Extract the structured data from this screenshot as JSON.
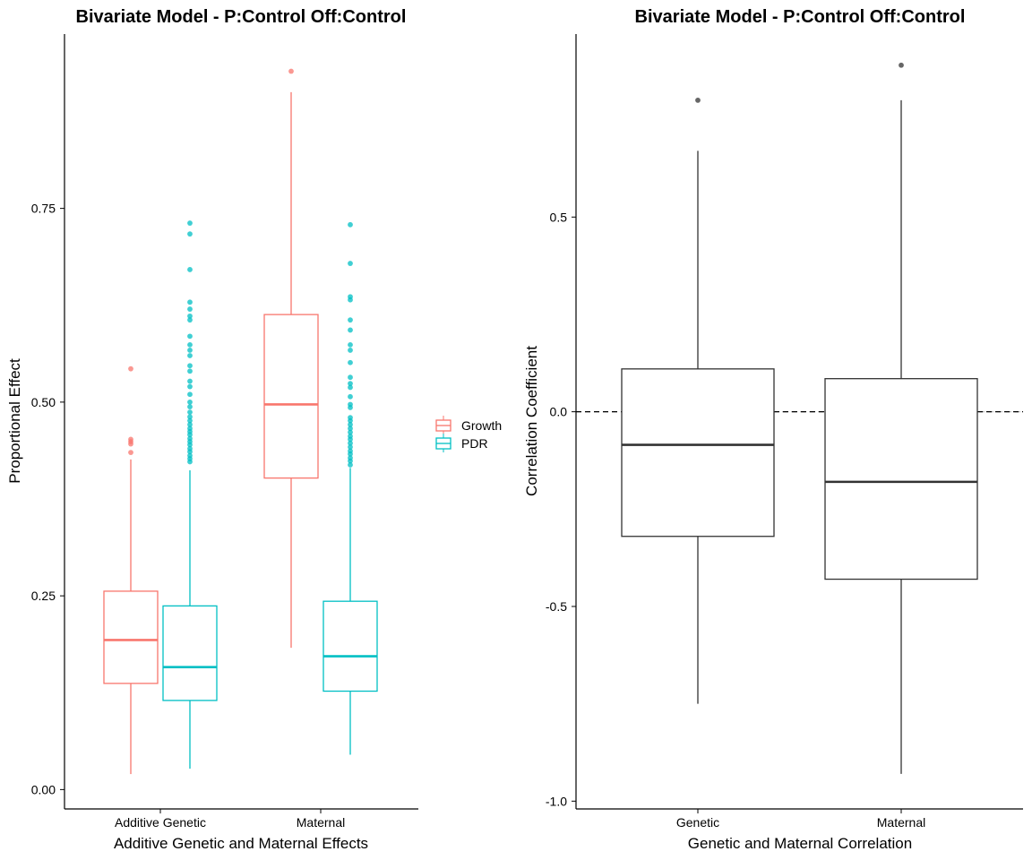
{
  "colors": {
    "growth": "#F8766D",
    "pdr": "#00BFC4",
    "neutral_box": "#333333",
    "outlier_neutral": "#555555",
    "zero_line": "#000000",
    "zero_line_faint": "#bbbbbb"
  },
  "chart_data": [
    {
      "type": "boxplot",
      "title": "Bivariate Model - P:Control Off:Control",
      "xlabel": "Additive Genetic and Maternal Effects",
      "ylabel": "Proportional Effect",
      "categories": [
        "Additive Genetic",
        "Maternal"
      ],
      "ylim": [
        -0.025,
        0.975
      ],
      "yticks": [
        0.0,
        0.25,
        0.5,
        0.75
      ],
      "ytick_labels": [
        "0.00",
        "0.25",
        "0.50",
        "0.75"
      ],
      "grid": false,
      "legend": {
        "position": "right",
        "entries": [
          "Growth",
          "PDR"
        ]
      },
      "series": [
        {
          "name": "Growth",
          "color_key": "growth",
          "boxes": [
            {
              "category": "Additive Genetic",
              "min": 0.02,
              "q1": 0.137,
              "median": 0.193,
              "q3": 0.256,
              "max": 0.426,
              "outliers": [
                0.435,
                0.446,
                0.449,
                0.452,
                0.543
              ]
            },
            {
              "category": "Maternal",
              "min": 0.183,
              "q1": 0.402,
              "median": 0.497,
              "q3": 0.613,
              "max": 0.9,
              "outliers": [
                0.927
              ]
            }
          ]
        },
        {
          "name": "PDR",
          "color_key": "pdr",
          "boxes": [
            {
              "category": "Additive Genetic",
              "min": 0.027,
              "q1": 0.115,
              "median": 0.158,
              "q3": 0.237,
              "max": 0.412,
              "outliers": [
                0.423,
                0.427,
                0.431,
                0.436,
                0.44,
                0.445,
                0.449,
                0.453,
                0.458,
                0.462,
                0.466,
                0.471,
                0.476,
                0.481,
                0.487,
                0.494,
                0.5,
                0.51,
                0.52,
                0.527,
                0.54,
                0.547,
                0.56,
                0.567,
                0.574,
                0.585,
                0.606,
                0.611,
                0.62,
                0.629,
                0.671,
                0.717,
                0.731
              ]
            },
            {
              "category": "Maternal",
              "min": 0.045,
              "q1": 0.127,
              "median": 0.172,
              "q3": 0.243,
              "max": 0.415,
              "outliers": [
                0.419,
                0.424,
                0.428,
                0.433,
                0.437,
                0.442,
                0.447,
                0.452,
                0.456,
                0.461,
                0.466,
                0.471,
                0.476,
                0.48,
                0.493,
                0.497,
                0.507,
                0.519,
                0.524,
                0.532,
                0.551,
                0.567,
                0.574,
                0.593,
                0.606,
                0.632,
                0.636,
                0.679,
                0.729
              ]
            }
          ]
        }
      ]
    },
    {
      "type": "boxplot",
      "title": "Bivariate Model - P:Control Off:Control",
      "xlabel": "Genetic and Maternal Correlation",
      "ylabel": "Correlation Coefficient",
      "categories": [
        "Genetic",
        "Maternal"
      ],
      "ylim": [
        -1.02,
        0.97
      ],
      "yticks": [
        -1.0,
        -0.5,
        0.0,
        0.5
      ],
      "ytick_labels": [
        "-1.0",
        "-0.5",
        "0.0",
        "0.5"
      ],
      "grid": false,
      "reference_line": {
        "y": 0.0,
        "style": "dashed"
      },
      "boxes": [
        {
          "category": "Genetic",
          "min": -0.75,
          "q1": -0.32,
          "median": -0.085,
          "q3": 0.11,
          "max": 0.67,
          "outliers": [
            0.8
          ]
        },
        {
          "category": "Maternal",
          "min": -0.93,
          "q1": -0.43,
          "median": -0.18,
          "q3": 0.085,
          "max": 0.8,
          "outliers": [
            0.89
          ]
        }
      ]
    }
  ]
}
